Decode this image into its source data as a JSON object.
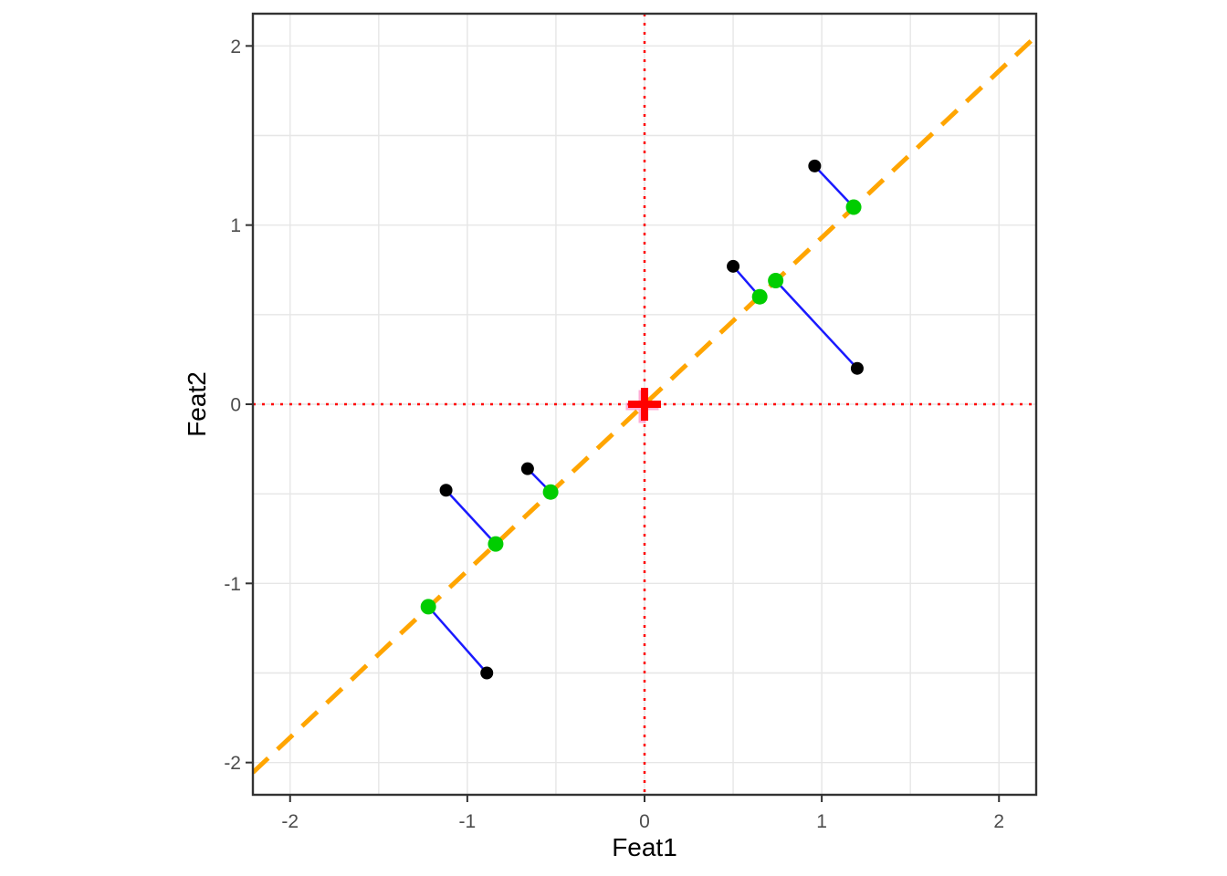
{
  "chart_data": {
    "type": "scatter",
    "title": "",
    "xlabel": "Feat1",
    "ylabel": "Feat2",
    "xlim": [
      -2.21,
      2.21
    ],
    "ylim": [
      -2.18,
      2.18
    ],
    "grid": "on",
    "legend": "none",
    "ticks": {
      "x_values": [
        -2,
        -1,
        0,
        1,
        2
      ],
      "x_labels": [
        "-2",
        "-1",
        "0",
        "1",
        "2"
      ],
      "y_values": [
        -2,
        -1,
        0,
        1,
        2
      ],
      "y_labels": [
        "-2",
        "-1",
        "0",
        "1",
        "2"
      ]
    },
    "grid_values": [
      -2,
      -1.5,
      -1,
      -0.5,
      0,
      0.5,
      1,
      1.5,
      2
    ],
    "series": [
      {
        "name": "original-points",
        "marker": "circle",
        "color": "#000000",
        "radius": 7,
        "points": [
          [
            0.96,
            1.33
          ],
          [
            0.5,
            0.77
          ],
          [
            1.2,
            0.2
          ],
          [
            -1.12,
            -0.48
          ],
          [
            -0.66,
            -0.36
          ],
          [
            -0.89,
            -1.5
          ]
        ]
      },
      {
        "name": "projected-points",
        "marker": "circle",
        "color": "#00CD00",
        "radius": 8.5,
        "points": [
          [
            1.18,
            1.1
          ],
          [
            0.65,
            0.6
          ],
          [
            0.74,
            0.69
          ],
          [
            -0.84,
            -0.78
          ],
          [
            -0.53,
            -0.49
          ],
          [
            -1.22,
            -1.13
          ]
        ]
      }
    ],
    "projection_segments": {
      "color": "#1A1AFF",
      "width": 2.5,
      "pairs": [
        {
          "from": [
            0.96,
            1.33
          ],
          "to": [
            1.18,
            1.1
          ]
        },
        {
          "from": [
            0.5,
            0.77
          ],
          "to": [
            0.65,
            0.6
          ]
        },
        {
          "from": [
            1.2,
            0.2
          ],
          "to": [
            0.74,
            0.69
          ]
        },
        {
          "from": [
            -1.12,
            -0.48
          ],
          "to": [
            -0.84,
            -0.78
          ]
        },
        {
          "from": [
            -0.66,
            -0.36
          ],
          "to": [
            -0.53,
            -0.49
          ]
        },
        {
          "from": [
            -0.89,
            -1.5
          ],
          "to": [
            -1.22,
            -1.13
          ]
        }
      ]
    },
    "pc_line": {
      "slope": 0.93,
      "intercept": 0,
      "color": "#FFA500",
      "style": "dashed",
      "width": 5
    },
    "reference_lines": {
      "vertical_x": 0,
      "horizontal_y": 0,
      "color": "#FF0000",
      "style": "dotted",
      "width": 2.5
    },
    "origin_marker": {
      "x": 0,
      "y": 0,
      "shape": "plus",
      "color": "#FF0000",
      "halo_color": "#FF69B4",
      "arm": 18,
      "stroke": 8
    },
    "style": {
      "panel_background": "#FFFFFF",
      "grid_color": "#E6E6E6",
      "grid_width": 1.4,
      "border_color": "#333333",
      "border_width": 2.4,
      "tick_color": "#333333",
      "tick_label_color": "#4D4D4D",
      "axis_title_color": "#000000"
    }
  }
}
